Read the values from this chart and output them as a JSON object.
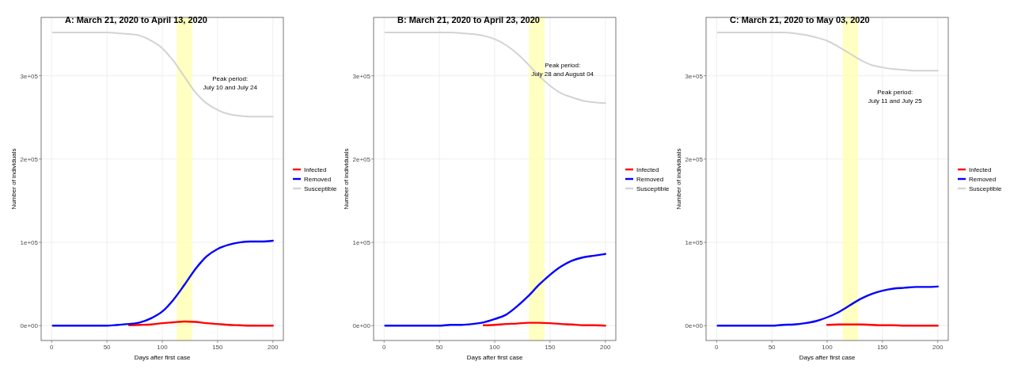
{
  "chart_data": [
    {
      "type": "line",
      "title": "A: March 21, 2020 to April 13, 2020",
      "xlabel": "Days after first case",
      "ylabel": "Number of individuals",
      "x": [
        1,
        10,
        20,
        30,
        40,
        50,
        60,
        70,
        80,
        90,
        100,
        110,
        120,
        130,
        140,
        150,
        160,
        170,
        180,
        190,
        200
      ],
      "xlim": [
        -9.5,
        209.5
      ],
      "xticks": [
        0,
        50,
        100,
        150,
        200
      ],
      "ylim": [
        -17800,
        370000
      ],
      "yticks": [
        {
          "value": 0,
          "label": "0e+00"
        },
        {
          "value": 100000,
          "label": "1e+05"
        },
        {
          "value": 200000,
          "label": "2e+05"
        },
        {
          "value": 300000,
          "label": "3e+05"
        }
      ],
      "grid": true,
      "legend": "right",
      "line_style": "solid",
      "series": [
        {
          "name": "Infected",
          "color": "#ff0000",
          "values": [
            null,
            null,
            null,
            null,
            null,
            null,
            null,
            500,
            1000,
            1500,
            3000,
            4000,
            5000,
            4500,
            3000,
            2000,
            1000,
            500,
            0,
            0,
            0
          ]
        },
        {
          "name": "Removed",
          "color": "#0000ff",
          "values": [
            0,
            0,
            0,
            0,
            0,
            0,
            1000,
            2000,
            4000,
            9000,
            17000,
            31000,
            49000,
            68000,
            83000,
            92000,
            97000,
            100000,
            101000,
            101000,
            102000
          ]
        },
        {
          "name": "Susceptible",
          "color": "#d3d3d3",
          "values": [
            352000,
            352000,
            352000,
            352000,
            352000,
            352000,
            351000,
            350000,
            348000,
            342000,
            333000,
            318000,
            299000,
            280000,
            267000,
            259000,
            254000,
            252000,
            251000,
            251000,
            251000
          ]
        }
      ],
      "bands": [
        {
          "axis": "x",
          "from": 113,
          "to": 127,
          "color": "#ffffb3"
        }
      ],
      "annotations": [
        "Peak period:\nJuly 10 and July 24"
      ]
    },
    {
      "type": "line",
      "title": "B: March 21, 2020 to April 23, 2020",
      "xlabel": "Days after first case",
      "ylabel": "Number of individuals",
      "x": [
        1,
        10,
        20,
        30,
        40,
        50,
        60,
        70,
        80,
        90,
        100,
        110,
        120,
        130,
        140,
        150,
        160,
        170,
        180,
        190,
        200
      ],
      "xlim": [
        -9.5,
        209.5
      ],
      "xticks": [
        0,
        50,
        100,
        150,
        200
      ],
      "ylim": [
        -17800,
        370000
      ],
      "yticks": [
        {
          "value": 0,
          "label": "0e+00"
        },
        {
          "value": 100000,
          "label": "1e+05"
        },
        {
          "value": 200000,
          "label": "2e+05"
        },
        {
          "value": 300000,
          "label": "3e+05"
        }
      ],
      "grid": true,
      "legend": "right",
      "line_style": "solid",
      "series": [
        {
          "name": "Infected",
          "color": "#ff0000",
          "values": [
            null,
            null,
            null,
            null,
            null,
            null,
            null,
            null,
            null,
            500,
            1000,
            2000,
            2500,
            3500,
            3500,
            3000,
            2000,
            1500,
            500,
            500,
            0
          ]
        },
        {
          "name": "Removed",
          "color": "#0000ff",
          "values": [
            0,
            0,
            0,
            0,
            0,
            0,
            1000,
            1000,
            2000,
            4000,
            8000,
            13000,
            23000,
            35000,
            49000,
            61000,
            71000,
            78000,
            82000,
            84000,
            86000
          ]
        },
        {
          "name": "Susceptible",
          "color": "#d3d3d3",
          "values": [
            352000,
            352000,
            352000,
            352000,
            352000,
            352000,
            352000,
            351000,
            350000,
            348000,
            344000,
            337000,
            327000,
            314000,
            300000,
            288000,
            279000,
            274000,
            270000,
            268000,
            267000
          ]
        }
      ],
      "bands": [
        {
          "axis": "x",
          "from": 131,
          "to": 145,
          "color": "#ffffb3"
        }
      ],
      "annotations": [
        "Peak period:\nJuly 28 and August 04"
      ]
    },
    {
      "type": "line",
      "title": "C: March 21, 2020 to May 03, 2020",
      "xlabel": "Days after first case",
      "ylabel": "Number of individuals",
      "x": [
        1,
        10,
        20,
        30,
        40,
        50,
        60,
        70,
        80,
        90,
        100,
        110,
        120,
        130,
        140,
        150,
        160,
        170,
        180,
        190,
        200
      ],
      "xlim": [
        -9.5,
        209.5
      ],
      "xticks": [
        0,
        50,
        100,
        150,
        200
      ],
      "ylim": [
        -17800,
        370000
      ],
      "yticks": [
        {
          "value": 0,
          "label": "0e+00"
        },
        {
          "value": 100000,
          "label": "1e+05"
        },
        {
          "value": 200000,
          "label": "2e+05"
        },
        {
          "value": 300000,
          "label": "3e+05"
        }
      ],
      "grid": true,
      "legend": "right",
      "line_style": "solid",
      "series": [
        {
          "name": "Infected",
          "color": "#ff0000",
          "values": [
            null,
            null,
            null,
            null,
            null,
            null,
            null,
            null,
            null,
            null,
            1000,
            1500,
            1500,
            1500,
            1000,
            500,
            500,
            0,
            0,
            0,
            0
          ]
        },
        {
          "name": "Removed",
          "color": "#0000ff",
          "values": [
            0,
            0,
            0,
            0,
            0,
            0,
            1000,
            1500,
            3000,
            5500,
            10000,
            16000,
            24000,
            32000,
            38000,
            42000,
            44500,
            45500,
            46500,
            46500,
            47000
          ]
        },
        {
          "name": "Susceptible",
          "color": "#d3d3d3",
          "values": [
            352000,
            352000,
            352000,
            352000,
            352000,
            352000,
            352000,
            351000,
            349000,
            346000,
            342000,
            335000,
            327000,
            319000,
            313000,
            310000,
            308000,
            307000,
            306000,
            306000,
            306000
          ]
        }
      ],
      "bands": [
        {
          "axis": "x",
          "from": 114,
          "to": 128,
          "color": "#ffffb3"
        }
      ],
      "annotations": [
        "Peak period:\nJuly 11 and July 25"
      ]
    }
  ]
}
